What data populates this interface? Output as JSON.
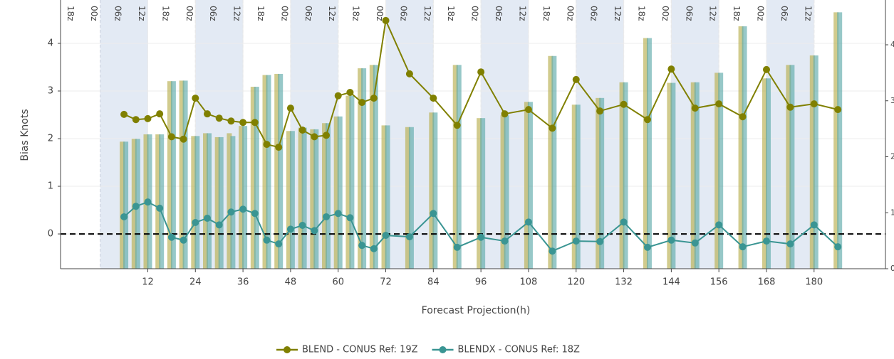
{
  "chart_data": {
    "type": "line",
    "x_label": "Forecast Projection(h)",
    "y_label": "Bias Knots",
    "x": [
      6,
      9,
      12,
      15,
      18,
      21,
      24,
      27,
      30,
      33,
      36,
      39,
      42,
      45,
      48,
      51,
      54,
      57,
      60,
      63,
      66,
      69,
      72,
      78,
      84,
      90,
      96,
      102,
      108,
      114,
      120,
      126,
      132,
      138,
      144,
      150,
      156,
      162,
      168,
      174,
      180,
      186
    ],
    "series": [
      {
        "type": "bar",
        "axis": "y2",
        "color": "rgba(185,175,80,0.65)",
        "values": [
          2.27,
          2.32,
          2.4,
          2.4,
          3.35,
          3.36,
          2.37,
          2.42,
          2.35,
          2.42,
          2.55,
          3.25,
          3.46,
          3.48,
          2.46,
          2.52,
          2.49,
          2.6,
          2.72,
          3.09,
          3.58,
          3.64,
          2.56,
          2.53,
          2.79,
          3.64,
          2.69,
          2.74,
          2.98,
          3.8,
          2.93,
          3.05,
          3.33,
          4.12,
          3.32,
          3.33,
          3.5,
          4.33,
          3.4,
          3.64,
          3.81,
          4.58
        ]
      },
      {
        "type": "bar",
        "axis": "y2",
        "color": "rgba(95,170,170,0.65)",
        "values": [
          2.27,
          2.32,
          2.4,
          2.4,
          3.35,
          3.36,
          2.37,
          2.42,
          2.35,
          2.37,
          2.55,
          3.25,
          3.46,
          3.48,
          2.46,
          2.52,
          2.49,
          2.6,
          2.72,
          3.09,
          3.58,
          3.64,
          2.56,
          2.53,
          2.79,
          3.64,
          2.69,
          2.74,
          2.98,
          3.8,
          2.93,
          3.05,
          3.33,
          4.12,
          3.32,
          3.33,
          3.5,
          4.33,
          3.4,
          3.64,
          3.81,
          4.58
        ]
      },
      {
        "type": "line",
        "name": "BLEND - CONUS Ref: 19Z",
        "color": "#808000",
        "values": [
          2.51,
          2.4,
          2.42,
          2.52,
          2.04,
          1.99,
          2.85,
          2.52,
          2.43,
          2.37,
          2.34,
          2.34,
          1.88,
          1.82,
          2.64,
          2.18,
          2.04,
          2.07,
          2.9,
          2.97,
          2.76,
          2.85,
          4.48,
          3.36,
          2.85,
          2.28,
          3.4,
          2.52,
          2.61,
          2.22,
          3.24,
          2.58,
          2.72,
          2.4,
          3.46,
          2.64,
          2.73,
          2.46,
          3.45,
          2.66,
          2.73,
          2.61
        ]
      },
      {
        "type": "line",
        "name": "BLENDX - CONUS Ref: 18Z",
        "color": "#3a9593",
        "values": [
          0.36,
          0.58,
          0.67,
          0.54,
          -0.07,
          -0.13,
          0.24,
          0.33,
          0.19,
          0.46,
          0.52,
          0.43,
          -0.13,
          -0.21,
          0.1,
          0.18,
          0.07,
          0.36,
          0.43,
          0.34,
          -0.24,
          -0.31,
          -0.03,
          -0.06,
          0.43,
          -0.28,
          -0.07,
          -0.15,
          0.25,
          -0.36,
          -0.15,
          -0.16,
          0.25,
          -0.28,
          -0.13,
          -0.19,
          0.19,
          -0.27,
          -0.15,
          -0.21,
          0.19,
          -0.27
        ]
      }
    ],
    "xlim": [
      -10,
      198
    ],
    "xticks": [
      12,
      24,
      36,
      48,
      60,
      72,
      84,
      96,
      108,
      120,
      132,
      144,
      156,
      168,
      180
    ],
    "ylim": [
      -0.73,
      4.91
    ],
    "yticks": [
      0,
      1,
      2,
      3,
      4
    ],
    "y2lim": [
      0,
      4.8
    ],
    "y2ticks": [
      0,
      1,
      2,
      3,
      4
    ],
    "reference_line": 0,
    "grid": true,
    "shaded_ranges": [
      [
        0,
        12
      ],
      [
        24,
        36
      ],
      [
        48,
        60
      ],
      [
        72,
        84
      ],
      [
        96,
        108
      ],
      [
        120,
        132
      ],
      [
        144,
        156
      ],
      [
        168,
        180
      ]
    ],
    "time_labels": {
      "hours": [
        -6,
        0,
        6,
        12,
        18,
        24,
        30,
        36,
        42,
        48,
        54,
        60,
        66,
        72,
        78,
        84,
        90,
        96,
        102,
        108,
        114,
        120,
        126,
        132,
        138,
        144,
        150,
        156,
        162,
        168,
        174,
        180
      ],
      "labels": [
        "18z",
        "00z",
        "06z",
        "12z",
        "18z",
        "00z",
        "06z",
        "12z",
        "18z",
        "00z",
        "06z",
        "12z",
        "18z",
        "00z",
        "06z",
        "12z",
        "18z",
        "00z",
        "06z",
        "12z",
        "18z",
        "00z",
        "06z",
        "12z",
        "18z",
        "00z",
        "06z",
        "12z",
        "18z",
        "00z",
        "06z",
        "12z"
      ]
    },
    "legend": "bottom"
  }
}
